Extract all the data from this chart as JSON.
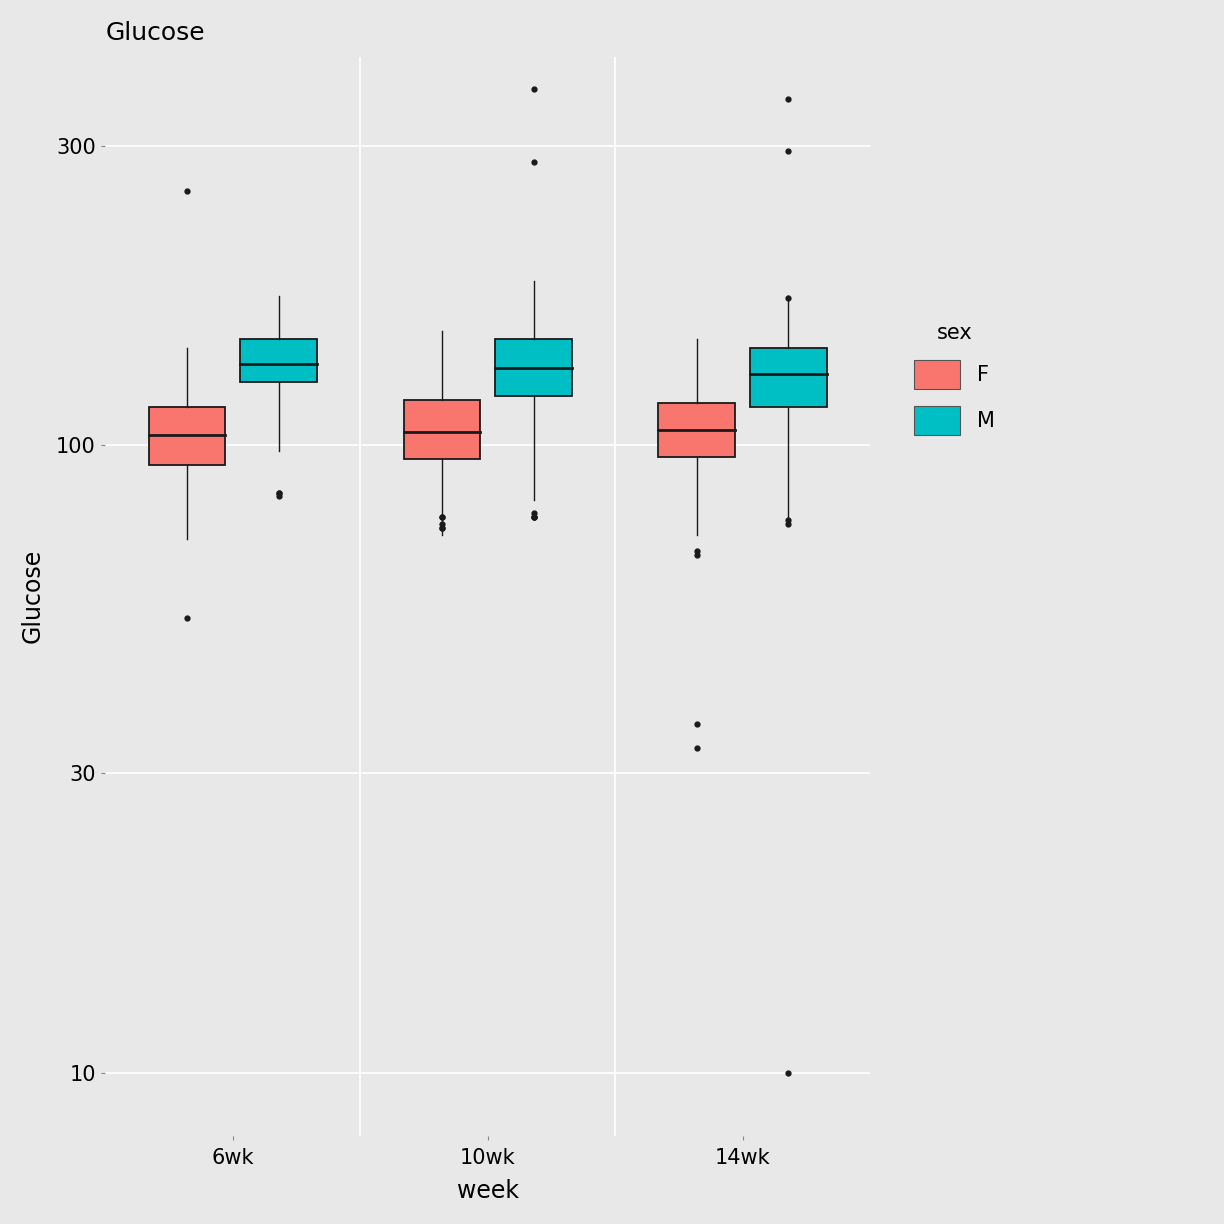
{
  "title": "Glucose",
  "xlabel": "week",
  "ylabel": "Glucose",
  "background_color": "#E8E8E8",
  "panel_background": "#E8E8E8",
  "colors": {
    "F": "#F8766D",
    "M": "#00BFC4"
  },
  "weeks": [
    "6wk",
    "10wk",
    "14wk"
  ],
  "yticks": [
    10,
    30,
    100,
    300
  ],
  "ylim_log": [
    0.9,
    2.62
  ],
  "boxes": {
    "6wk": {
      "F": {
        "q1": 93,
        "median": 104,
        "q3": 115,
        "whisker_low": 71,
        "whisker_high": 143,
        "outliers": [
          53,
          254
        ]
      },
      "M": {
        "q1": 126,
        "median": 135,
        "q3": 148,
        "whisker_low": 98,
        "whisker_high": 173,
        "outliers": [
          83,
          84,
          84
        ]
      }
    },
    "10wk": {
      "F": {
        "q1": 95,
        "median": 105,
        "q3": 118,
        "whisker_low": 72,
        "whisker_high": 152,
        "outliers": [
          74,
          74,
          75,
          77,
          77
        ]
      },
      "M": {
        "q1": 120,
        "median": 133,
        "q3": 148,
        "whisker_low": 82,
        "whisker_high": 183,
        "outliers": [
          77,
          77,
          77,
          78,
          283,
          370
        ]
      }
    },
    "14wk": {
      "F": {
        "q1": 96,
        "median": 106,
        "q3": 117,
        "whisker_low": 72,
        "whisker_high": 148,
        "outliers": [
          33,
          36,
          67,
          68
        ]
      },
      "M": {
        "q1": 115,
        "median": 130,
        "q3": 143,
        "whisker_low": 75,
        "whisker_high": 173,
        "outliers": [
          10,
          75,
          76,
          172,
          295,
          357
        ]
      }
    }
  },
  "box_width": 0.3,
  "positions": {
    "6wk": 1.0,
    "10wk": 2.0,
    "14wk": 3.0
  },
  "offsets": {
    "F": -0.18,
    "M": 0.18
  }
}
